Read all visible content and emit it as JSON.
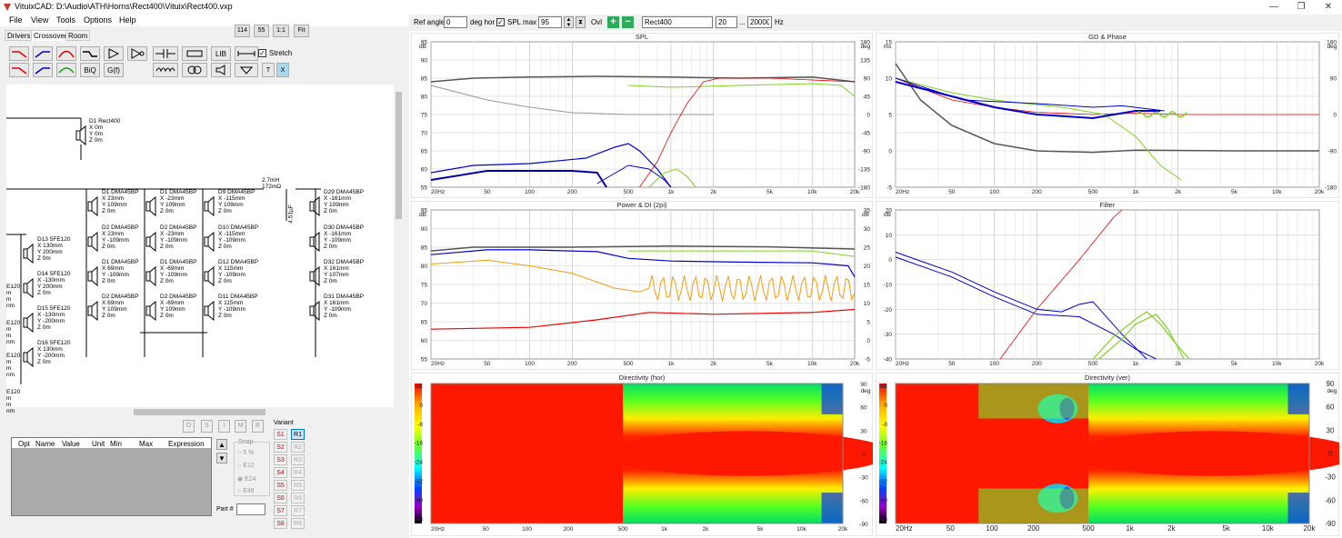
{
  "window": {
    "title": "VituixCAD: D:\\Audio\\ATH\\Horns\\Rect400\\Vituix\\Rect400.vxp"
  },
  "menu": [
    "File",
    "View",
    "Tools",
    "Options",
    "Help"
  ],
  "zoom_buttons": [
    "114",
    "55",
    "1:1",
    "Fit"
  ],
  "tabs": [
    "Drivers",
    "Crossover",
    "Room"
  ],
  "tools": {
    "biq": "BiQ",
    "gf": "G(f)",
    "lib": "LIB",
    "t": "T",
    "x": "X",
    "stretch": "Stretch"
  },
  "top": {
    "ref_angle_label": "Ref angle",
    "ref_angle_value": "0",
    "deg_hor": "deg hor",
    "spl_max_label": "SPL max",
    "spl_max_value": "95",
    "ovl_label": "Ovl",
    "name_value": "Rect400",
    "f_low": "20",
    "dots": "...",
    "f_high": "20000",
    "hz": "Hz"
  },
  "schematic": {
    "d1": [
      "D1 Rect400",
      "X 0m",
      "Y 0m",
      "Z 0m"
    ],
    "inductor": [
      "2.7mH",
      "172mΩ"
    ],
    "cap": "4.51µF",
    "col1": [
      [
        "D1 DMA45BP",
        "X 23mm",
        "Y 109mm",
        "Z 0m"
      ],
      [
        "D2 DMA45BP",
        "X 23mm",
        "Y -109mm",
        "Z 0m"
      ],
      [
        "D1 DMA45BP",
        "X 69mm",
        "Y -109mm",
        "Z 0m"
      ],
      [
        "D2 DMA45BP",
        "X 69mm",
        "Y 109mm",
        "Z 0m"
      ]
    ],
    "col2": [
      [
        "D1 DMA45BP",
        "X -23mm",
        "Y 109mm",
        "Z 0m"
      ],
      [
        "D2 DMA45BP",
        "X -23mm",
        "Y -109mm",
        "Z 0m"
      ],
      [
        "D1 DMA45BP",
        "X -69mm",
        "Y -109mm",
        "Z 0m"
      ],
      [
        "D2 DMA45BP",
        "X -69mm",
        "Y 109mm",
        "Z 0m"
      ]
    ],
    "col3": [
      [
        "D9 DMA45BP",
        "X -115mm",
        "Y 109mm",
        "Z 0m"
      ],
      [
        "D10 DMA45BP",
        "X -115mm",
        "Y -109mm",
        "Z 0m"
      ],
      [
        "D12 DMA45BP",
        "X 115mm",
        "Y -109mm",
        "Z 0m"
      ],
      [
        "D11 DMA45BP",
        "X 115mm",
        "Y -109mm",
        "Z 0m"
      ]
    ],
    "col4": [
      [
        "D29 DMA45BP",
        "X -161mm",
        "Y 109mm",
        "Z 0m"
      ],
      [
        "D30 DMA45BP",
        "X -161mm",
        "Y -109mm",
        "Z 0m"
      ],
      [
        "D32 DMA45BP",
        "X 161mm",
        "Y 107mm",
        "Z 0m"
      ],
      [
        "D31 DMA45BP",
        "X 161mm",
        "Y -109mm",
        "Z 0m"
      ]
    ],
    "woofers": [
      [
        "D13 5FE120",
        "X 130mm",
        "Y 200mm",
        "Z 0m"
      ],
      [
        "D14 5FE120",
        "X -130mm",
        "Y 200mm",
        "Z 0m"
      ],
      [
        "D15 5FE120",
        "X -130mm",
        "Y -200mm",
        "Z 0m"
      ],
      [
        "D16 5FE120",
        "X 130mm",
        "Y -200mm",
        "Z 0m"
      ]
    ],
    "e120": [
      "E120",
      "m",
      "m",
      "nm"
    ]
  },
  "osimr": [
    "O",
    "S",
    "I",
    "M",
    "R"
  ],
  "table_headers": [
    "Opt",
    "Name",
    "Value",
    "Unit",
    "Min",
    "Max",
    "Expression"
  ],
  "snap": {
    "label": "Snap",
    "options": [
      "5 %",
      "E12",
      "E24",
      "E48"
    ]
  },
  "part_label": "Part #",
  "variant": {
    "label": "Variant",
    "s": [
      "S1",
      "S2",
      "S3",
      "S4",
      "S5",
      "S6",
      "S7",
      "S8"
    ],
    "r": [
      "R1",
      "R2",
      "R3",
      "R4",
      "R5",
      "R6",
      "R7",
      "R8"
    ]
  },
  "charts": {
    "spl": {
      "title": "SPL",
      "left_unit": "dB",
      "right_unit": "deg",
      "y_left": [
        "95",
        "90",
        "85",
        "80",
        "75",
        "70",
        "65",
        "60",
        "55"
      ],
      "y_right": [
        "180",
        "135",
        "90",
        "45",
        "0",
        "-45",
        "-90",
        "-135",
        "-180"
      ]
    },
    "gd": {
      "title": "GD & Phase",
      "left_unit": "ms",
      "right_unit": "deg",
      "y_left": [
        "15",
        "10",
        "5",
        "0",
        "-5"
      ],
      "y_right": [
        "180",
        "90",
        "0",
        "-90",
        "-180"
      ]
    },
    "power": {
      "title": "Power & DI (2pi)",
      "left_unit": "dB",
      "right_unit": "dB",
      "y_left": [
        "95",
        "90",
        "85",
        "80",
        "75",
        "70",
        "65",
        "60",
        "55"
      ],
      "y_right": [
        "35",
        "30",
        "25",
        "20",
        "15",
        "10",
        "5",
        "0",
        "-5"
      ]
    },
    "filter": {
      "title": "Filter",
      "left_unit": "dB",
      "y_left": [
        "20",
        "10",
        "0",
        "-10",
        "-20",
        "-30",
        "-40"
      ]
    },
    "dir_hor": {
      "title": "Directivity (hor)",
      "scale": [
        "dB",
        "0",
        "-8",
        "-16",
        "-24",
        "-32",
        "-40",
        "-48"
      ],
      "deg": [
        "90",
        "60",
        "30",
        "0",
        "-30",
        "-60",
        "-90"
      ],
      "right_unit": "deg"
    },
    "dir_ver": {
      "title": "Directivity (ver)",
      "scale": [
        "dB",
        "0",
        "-8",
        "-16",
        "-24",
        "-32",
        "-40",
        "-48"
      ],
      "deg": [
        "90",
        "60",
        "30",
        "0",
        "-30",
        "-60",
        "-90"
      ],
      "right_unit": "deg"
    },
    "x_ticks": [
      "20Hz",
      "50",
      "100",
      "200",
      "500",
      "1k",
      "2k",
      "5k",
      "10k",
      "20k"
    ]
  }
}
